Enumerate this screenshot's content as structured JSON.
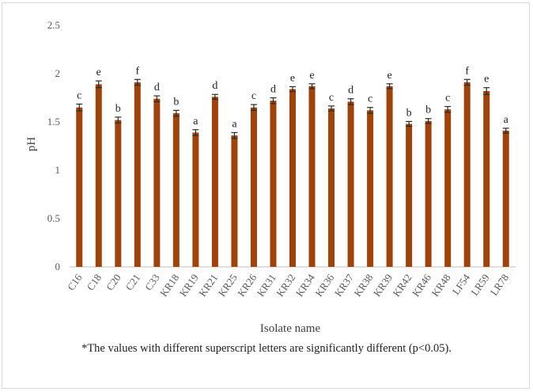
{
  "chart_data": {
    "type": "bar",
    "xlabel": "Isolate name",
    "ylabel": "pH",
    "ylim": [
      0,
      2.5
    ],
    "yticks": [
      "0",
      "0.5",
      "1",
      "1.5",
      "2",
      "2.5"
    ],
    "grid": false,
    "bar_color": "#a0430a",
    "error_color": "#2b2b2b",
    "categories": [
      "C16",
      "C18",
      "C20",
      "C21",
      "C33",
      "KR18",
      "KR19",
      "KR21",
      "KR25",
      "KR26",
      "KR31",
      "KR32",
      "KR34",
      "KR36",
      "KR37",
      "KR38",
      "KR39",
      "KR42",
      "KR46",
      "KR48",
      "LF54",
      "LR59",
      "LR78"
    ],
    "values": [
      1.65,
      1.89,
      1.52,
      1.91,
      1.74,
      1.59,
      1.39,
      1.76,
      1.36,
      1.65,
      1.72,
      1.84,
      1.87,
      1.64,
      1.71,
      1.62,
      1.87,
      1.48,
      1.51,
      1.63,
      1.91,
      1.82,
      1.41
    ],
    "errors": [
      0.035,
      0.035,
      0.03,
      0.03,
      0.03,
      0.03,
      0.03,
      0.025,
      0.03,
      0.03,
      0.03,
      0.025,
      0.025,
      0.025,
      0.03,
      0.03,
      0.025,
      0.025,
      0.025,
      0.03,
      0.03,
      0.035,
      0.025
    ],
    "significance_labels": [
      "c",
      "e",
      "b",
      "f",
      "d",
      "b",
      "a",
      "d",
      "a",
      "c",
      "d",
      "e",
      "e",
      "c",
      "d",
      "c",
      "e",
      "b",
      "b",
      "c",
      "f",
      "e",
      "a"
    ],
    "footnote": "*The values with different superscript letters are significantly different (p<0.05)."
  }
}
